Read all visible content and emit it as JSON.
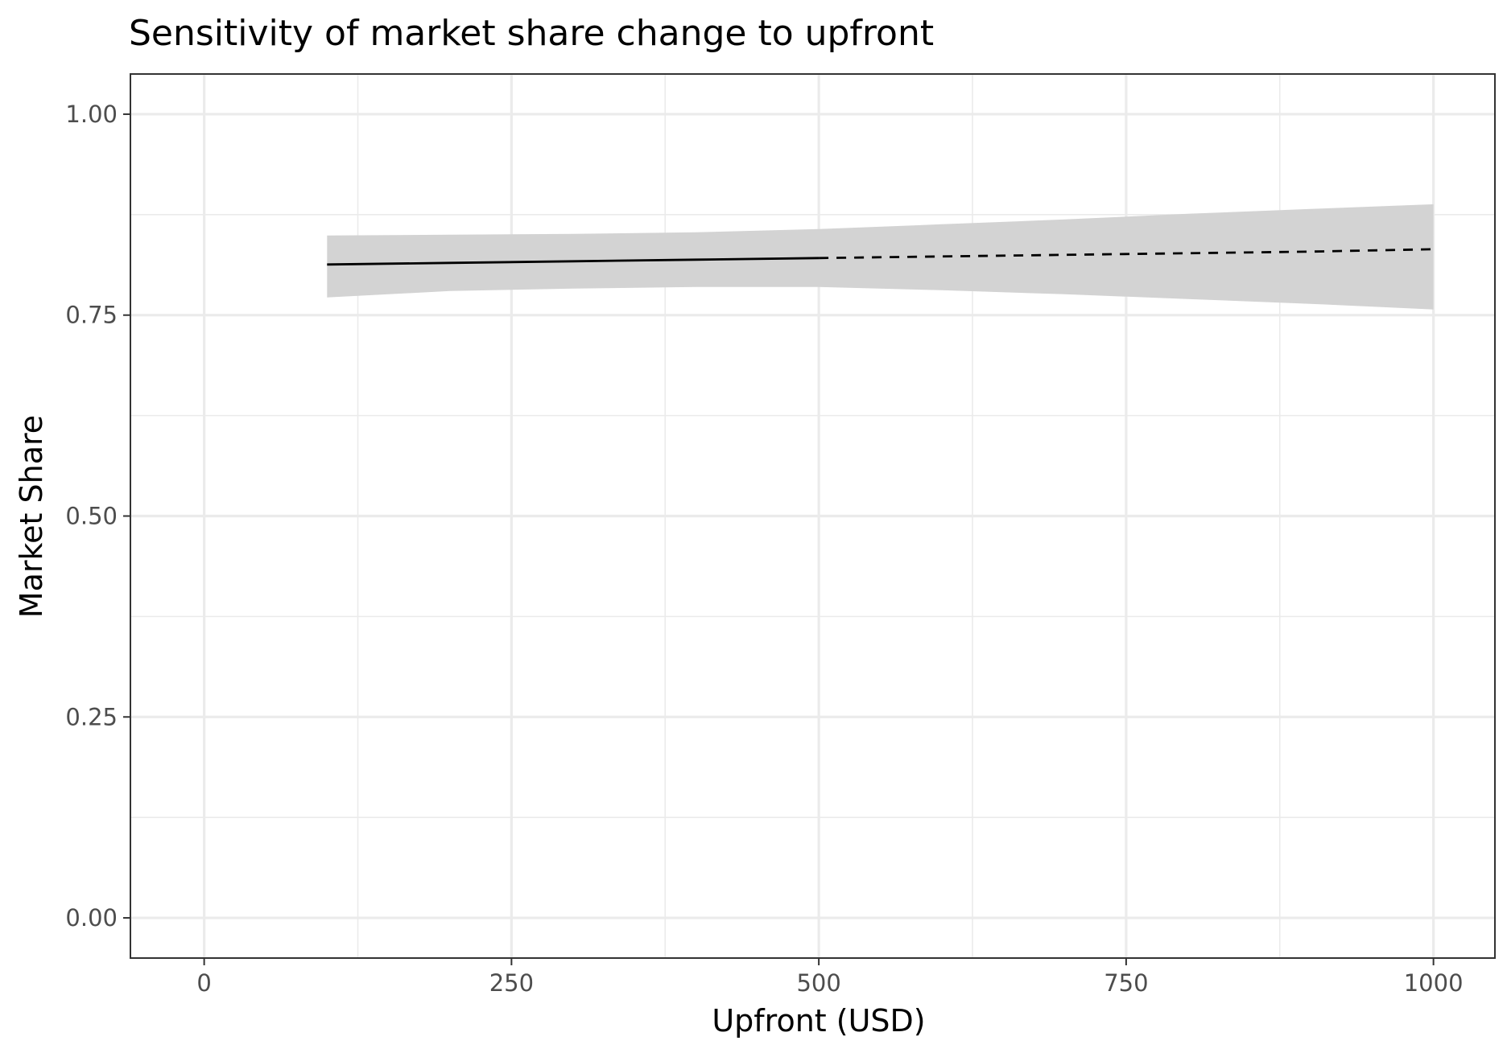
{
  "chart_data": {
    "type": "line",
    "title": "Sensitivity of market share change to upfront",
    "xlabel": "Upfront (USD)",
    "ylabel": "Market Share",
    "xlim": [
      -60,
      1050
    ],
    "ylim": [
      -0.05,
      1.05
    ],
    "x_ticks": [
      0,
      250,
      500,
      750,
      1000
    ],
    "x_tick_labels": [
      "0",
      "250",
      "500",
      "750",
      "1000"
    ],
    "y_ticks": [
      0,
      0.25,
      0.5,
      0.75,
      1.0
    ],
    "y_tick_labels": [
      "0.00",
      "0.25",
      "0.50",
      "0.75",
      "1.00"
    ],
    "x_minor_ticks": [
      125,
      375,
      625,
      875
    ],
    "y_minor_ticks": [
      0.125,
      0.375,
      0.625,
      0.875
    ],
    "grid": true,
    "series": [
      {
        "style": "solid",
        "color": "#000000",
        "x": [
          100,
          200,
          300,
          400,
          500
        ],
        "y": [
          0.813,
          0.815,
          0.817,
          0.819,
          0.821
        ]
      },
      {
        "style": "dashed",
        "color": "#000000",
        "x": [
          500,
          600,
          700,
          800,
          900,
          1000
        ],
        "y": [
          0.821,
          0.823,
          0.825,
          0.827,
          0.829,
          0.832
        ]
      }
    ],
    "confidence_band": {
      "color": "#d3d3d3",
      "x": [
        100,
        200,
        300,
        400,
        500,
        600,
        700,
        800,
        900,
        1000
      ],
      "lower": [
        0.772,
        0.78,
        0.783,
        0.785,
        0.785,
        0.781,
        0.776,
        0.77,
        0.764,
        0.757
      ],
      "upper": [
        0.849,
        0.85,
        0.851,
        0.853,
        0.857,
        0.863,
        0.869,
        0.876,
        0.882,
        0.888
      ]
    },
    "colors": {
      "panel_border": "#333333",
      "major_grid": "#ebebeb",
      "minor_grid": "#ebebeb",
      "tick_text": "#4d4d4d"
    }
  }
}
